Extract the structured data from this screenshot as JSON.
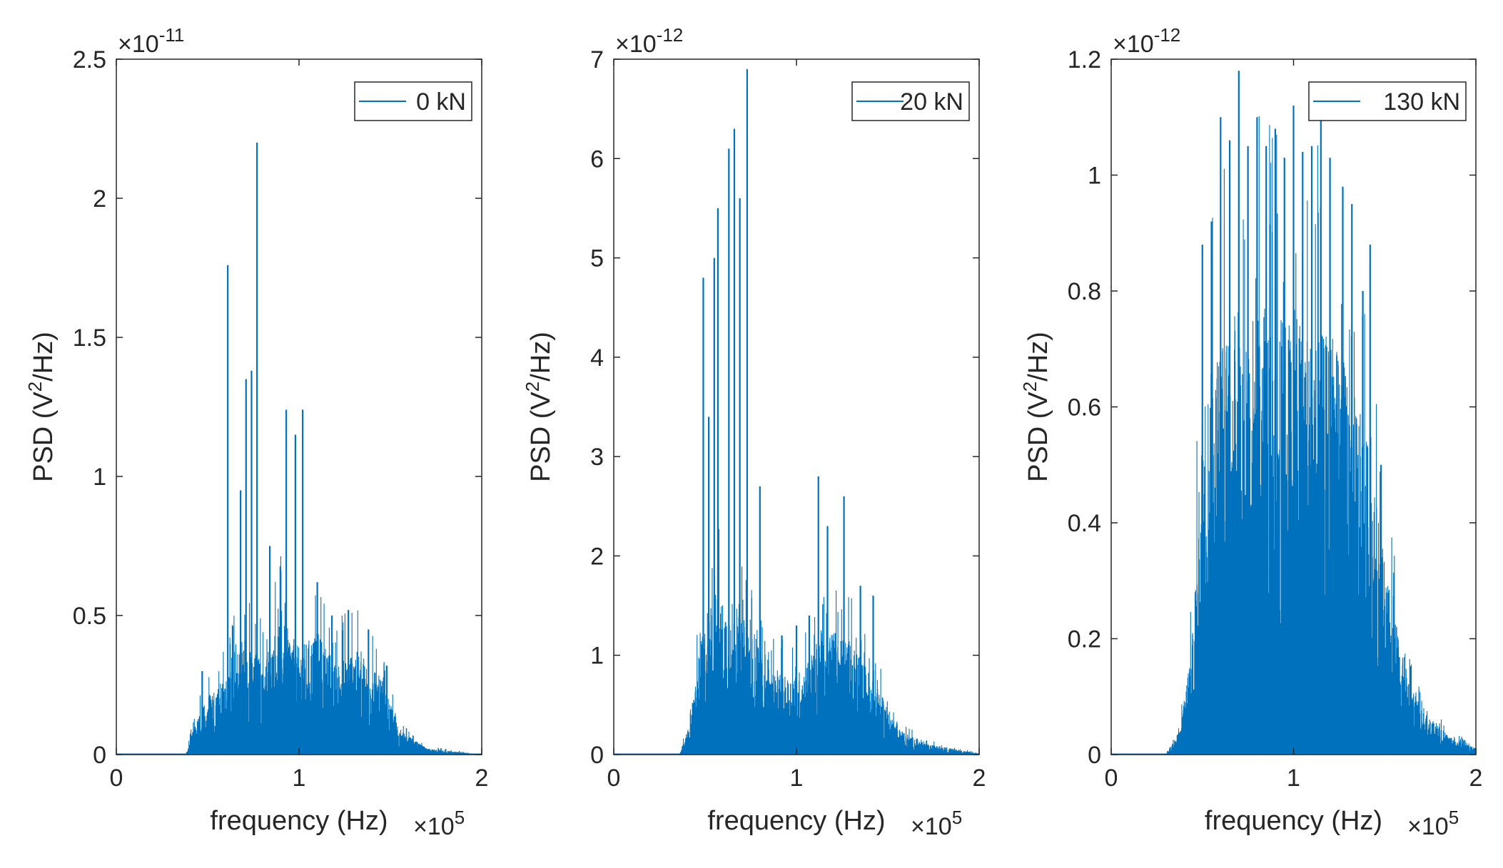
{
  "figure": {
    "series_color": "#0072BD",
    "axis_color": "#262626"
  },
  "chart_data": [
    {
      "type": "area",
      "series": [
        {
          "name": "0 kN"
        }
      ],
      "legend": {
        "label": "0 kN",
        "position": "top-right"
      },
      "xlabel": "frequency (Hz)",
      "x_exponent": {
        "base": "×10",
        "power": "5"
      },
      "ylabel": {
        "prefix": "PSD (V",
        "sup": "2",
        "suffix": "/Hz)"
      },
      "y_exponent": {
        "base": "×10",
        "power": "-11"
      },
      "xlim": [
        0,
        2
      ],
      "ylim": [
        0,
        2.5
      ],
      "xticks": [
        0,
        1,
        2
      ],
      "xtick_labels": [
        "0",
        "1",
        "2"
      ],
      "yticks": [
        0,
        0.5,
        1,
        1.5,
        2,
        2.5
      ],
      "ytick_labels": [
        "0",
        "0.5",
        "1",
        "1.5",
        "2",
        "2.5"
      ],
      "envelope": [
        [
          0,
          0
        ],
        [
          0.38,
          0
        ],
        [
          0.42,
          0.08
        ],
        [
          0.5,
          0.2
        ],
        [
          0.6,
          0.25
        ],
        [
          0.7,
          0.4
        ],
        [
          0.8,
          0.3
        ],
        [
          0.9,
          0.45
        ],
        [
          1.0,
          0.35
        ],
        [
          1.1,
          0.4
        ],
        [
          1.2,
          0.3
        ],
        [
          1.3,
          0.35
        ],
        [
          1.45,
          0.25
        ],
        [
          1.55,
          0.08
        ],
        [
          1.7,
          0.02
        ],
        [
          2.0,
          0
        ]
      ],
      "peaks": [
        [
          0.47,
          0.3
        ],
        [
          0.61,
          1.76
        ],
        [
          0.68,
          0.95
        ],
        [
          0.71,
          1.35
        ],
        [
          0.74,
          1.38
        ],
        [
          0.77,
          2.2
        ],
        [
          0.84,
          0.75
        ],
        [
          0.93,
          1.24
        ],
        [
          0.98,
          1.15
        ],
        [
          1.02,
          1.24
        ],
        [
          1.1,
          0.62
        ],
        [
          1.18,
          0.5
        ],
        [
          1.27,
          0.52
        ],
        [
          1.38,
          0.45
        ],
        [
          1.48,
          0.32
        ]
      ]
    },
    {
      "type": "area",
      "series": [
        {
          "name": "20 kN"
        }
      ],
      "legend": {
        "label": "20 kN",
        "position": "top-right"
      },
      "xlabel": "frequency (Hz)",
      "x_exponent": {
        "base": "×10",
        "power": "5"
      },
      "ylabel": {
        "prefix": "PSD (V",
        "sup": "2",
        "suffix": "/Hz)"
      },
      "y_exponent": {
        "base": "×10",
        "power": "-12"
      },
      "xlim": [
        0,
        2
      ],
      "ylim": [
        0,
        7
      ],
      "xticks": [
        0,
        1,
        2
      ],
      "xtick_labels": [
        "0",
        "1",
        "2"
      ],
      "yticks": [
        0,
        1,
        2,
        3,
        4,
        5,
        6,
        7
      ],
      "ytick_labels": [
        "0",
        "1",
        "2",
        "3",
        "4",
        "5",
        "6",
        "7"
      ],
      "envelope": [
        [
          0,
          0
        ],
        [
          0.36,
          0
        ],
        [
          0.42,
          0.3
        ],
        [
          0.47,
          1.0
        ],
        [
          0.55,
          1.5
        ],
        [
          0.65,
          1.3
        ],
        [
          0.75,
          1.2
        ],
        [
          0.85,
          0.8
        ],
        [
          0.95,
          0.7
        ],
        [
          1.05,
          0.8
        ],
        [
          1.15,
          1.2
        ],
        [
          1.25,
          1.1
        ],
        [
          1.35,
          0.9
        ],
        [
          1.45,
          0.6
        ],
        [
          1.55,
          0.25
        ],
        [
          1.7,
          0.1
        ],
        [
          2.0,
          0.01
        ]
      ],
      "peaks": [
        [
          0.49,
          4.8
        ],
        [
          0.52,
          3.4
        ],
        [
          0.55,
          5.0
        ],
        [
          0.57,
          5.5
        ],
        [
          0.63,
          6.1
        ],
        [
          0.66,
          6.3
        ],
        [
          0.69,
          5.6
        ],
        [
          0.73,
          6.9
        ],
        [
          0.8,
          2.7
        ],
        [
          0.92,
          1.2
        ],
        [
          1.0,
          1.3
        ],
        [
          1.07,
          1.4
        ],
        [
          1.12,
          2.8
        ],
        [
          1.17,
          2.3
        ],
        [
          1.26,
          2.6
        ],
        [
          1.35,
          1.7
        ],
        [
          1.42,
          1.6
        ]
      ]
    },
    {
      "type": "area",
      "series": [
        {
          "name": "130 kN"
        }
      ],
      "legend": {
        "label": "130 kN",
        "position": "top-right"
      },
      "xlabel": "frequency (Hz)",
      "x_exponent": {
        "base": "×10",
        "power": "5"
      },
      "ylabel": {
        "prefix": "PSD (V",
        "sup": "2",
        "suffix": "/Hz)"
      },
      "y_exponent": {
        "base": "×10",
        "power": "-12"
      },
      "xlim": [
        0,
        2
      ],
      "ylim": [
        0,
        1.2
      ],
      "xticks": [
        0,
        1,
        2
      ],
      "xtick_labels": [
        "0",
        "1",
        "2"
      ],
      "yticks": [
        0,
        0.2,
        0.4,
        0.6,
        0.8,
        1,
        1.2
      ],
      "ytick_labels": [
        "0",
        "0.2",
        "0.4",
        "0.6",
        "0.8",
        "1",
        "1.2"
      ],
      "envelope": [
        [
          0,
          0
        ],
        [
          0.3,
          0
        ],
        [
          0.38,
          0.04
        ],
        [
          0.45,
          0.2
        ],
        [
          0.5,
          0.55
        ],
        [
          0.6,
          0.66
        ],
        [
          0.7,
          0.68
        ],
        [
          0.8,
          0.7
        ],
        [
          0.9,
          0.68
        ],
        [
          1.0,
          0.7
        ],
        [
          1.1,
          0.66
        ],
        [
          1.2,
          0.66
        ],
        [
          1.3,
          0.6
        ],
        [
          1.4,
          0.5
        ],
        [
          1.5,
          0.3
        ],
        [
          1.6,
          0.15
        ],
        [
          1.7,
          0.07
        ],
        [
          1.85,
          0.03
        ],
        [
          2.0,
          0.01
        ]
      ],
      "peaks": [
        [
          0.5,
          0.88
        ],
        [
          0.55,
          0.92
        ],
        [
          0.6,
          1.1
        ],
        [
          0.65,
          1.06
        ],
        [
          0.7,
          1.18
        ],
        [
          0.75,
          1.05
        ],
        [
          0.8,
          1.1
        ],
        [
          0.85,
          1.05
        ],
        [
          0.9,
          1.08
        ],
        [
          0.95,
          1.03
        ],
        [
          1.0,
          1.12
        ],
        [
          1.05,
          1.04
        ],
        [
          1.1,
          1.05
        ],
        [
          1.15,
          1.12
        ],
        [
          1.2,
          1.03
        ],
        [
          1.27,
          0.98
        ],
        [
          1.32,
          0.95
        ],
        [
          1.38,
          0.8
        ],
        [
          1.42,
          0.88
        ],
        [
          1.48,
          0.5
        ]
      ]
    }
  ]
}
